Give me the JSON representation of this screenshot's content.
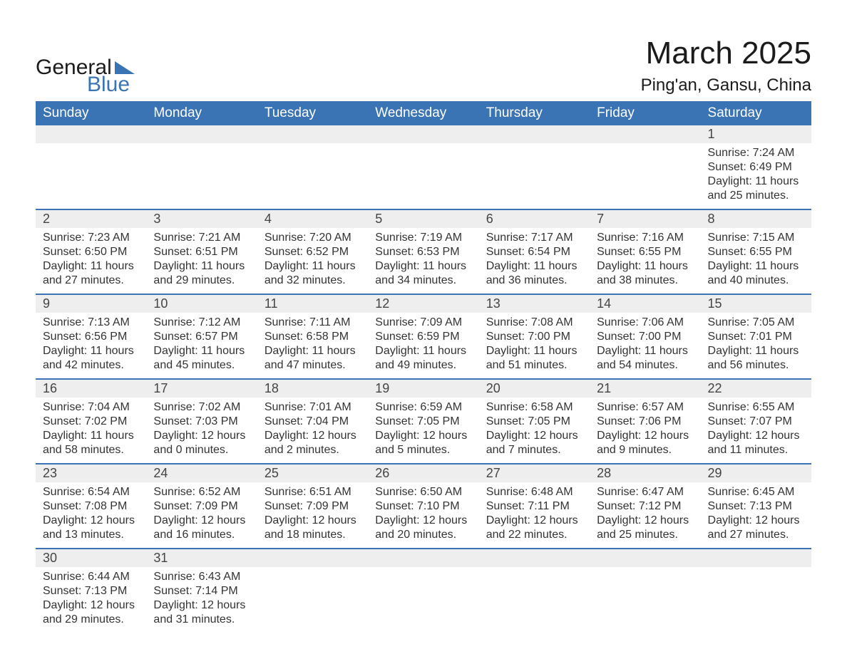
{
  "logo": {
    "word1": "General",
    "word2": "Blue"
  },
  "title": "March 2025",
  "location": "Ping'an, Gansu, China",
  "colors": {
    "header_bg": "#3b74b5",
    "header_text": "#ffffff",
    "daynum_bg": "#eeeeee",
    "row_border": "#3b74b5",
    "body_text": "#333333",
    "page_bg": "#ffffff"
  },
  "typography": {
    "title_fontsize": 44,
    "location_fontsize": 24,
    "day_header_fontsize": 19,
    "cell_fontsize": 16
  },
  "day_headers": [
    "Sunday",
    "Monday",
    "Tuesday",
    "Wednesday",
    "Thursday",
    "Friday",
    "Saturday"
  ],
  "weeks": [
    [
      null,
      null,
      null,
      null,
      null,
      null,
      {
        "n": "1",
        "sunrise": "Sunrise: 7:24 AM",
        "sunset": "Sunset: 6:49 PM",
        "day1": "Daylight: 11 hours",
        "day2": "and 25 minutes."
      }
    ],
    [
      {
        "n": "2",
        "sunrise": "Sunrise: 7:23 AM",
        "sunset": "Sunset: 6:50 PM",
        "day1": "Daylight: 11 hours",
        "day2": "and 27 minutes."
      },
      {
        "n": "3",
        "sunrise": "Sunrise: 7:21 AM",
        "sunset": "Sunset: 6:51 PM",
        "day1": "Daylight: 11 hours",
        "day2": "and 29 minutes."
      },
      {
        "n": "4",
        "sunrise": "Sunrise: 7:20 AM",
        "sunset": "Sunset: 6:52 PM",
        "day1": "Daylight: 11 hours",
        "day2": "and 32 minutes."
      },
      {
        "n": "5",
        "sunrise": "Sunrise: 7:19 AM",
        "sunset": "Sunset: 6:53 PM",
        "day1": "Daylight: 11 hours",
        "day2": "and 34 minutes."
      },
      {
        "n": "6",
        "sunrise": "Sunrise: 7:17 AM",
        "sunset": "Sunset: 6:54 PM",
        "day1": "Daylight: 11 hours",
        "day2": "and 36 minutes."
      },
      {
        "n": "7",
        "sunrise": "Sunrise: 7:16 AM",
        "sunset": "Sunset: 6:55 PM",
        "day1": "Daylight: 11 hours",
        "day2": "and 38 minutes."
      },
      {
        "n": "8",
        "sunrise": "Sunrise: 7:15 AM",
        "sunset": "Sunset: 6:55 PM",
        "day1": "Daylight: 11 hours",
        "day2": "and 40 minutes."
      }
    ],
    [
      {
        "n": "9",
        "sunrise": "Sunrise: 7:13 AM",
        "sunset": "Sunset: 6:56 PM",
        "day1": "Daylight: 11 hours",
        "day2": "and 42 minutes."
      },
      {
        "n": "10",
        "sunrise": "Sunrise: 7:12 AM",
        "sunset": "Sunset: 6:57 PM",
        "day1": "Daylight: 11 hours",
        "day2": "and 45 minutes."
      },
      {
        "n": "11",
        "sunrise": "Sunrise: 7:11 AM",
        "sunset": "Sunset: 6:58 PM",
        "day1": "Daylight: 11 hours",
        "day2": "and 47 minutes."
      },
      {
        "n": "12",
        "sunrise": "Sunrise: 7:09 AM",
        "sunset": "Sunset: 6:59 PM",
        "day1": "Daylight: 11 hours",
        "day2": "and 49 minutes."
      },
      {
        "n": "13",
        "sunrise": "Sunrise: 7:08 AM",
        "sunset": "Sunset: 7:00 PM",
        "day1": "Daylight: 11 hours",
        "day2": "and 51 minutes."
      },
      {
        "n": "14",
        "sunrise": "Sunrise: 7:06 AM",
        "sunset": "Sunset: 7:00 PM",
        "day1": "Daylight: 11 hours",
        "day2": "and 54 minutes."
      },
      {
        "n": "15",
        "sunrise": "Sunrise: 7:05 AM",
        "sunset": "Sunset: 7:01 PM",
        "day1": "Daylight: 11 hours",
        "day2": "and 56 minutes."
      }
    ],
    [
      {
        "n": "16",
        "sunrise": "Sunrise: 7:04 AM",
        "sunset": "Sunset: 7:02 PM",
        "day1": "Daylight: 11 hours",
        "day2": "and 58 minutes."
      },
      {
        "n": "17",
        "sunrise": "Sunrise: 7:02 AM",
        "sunset": "Sunset: 7:03 PM",
        "day1": "Daylight: 12 hours",
        "day2": "and 0 minutes."
      },
      {
        "n": "18",
        "sunrise": "Sunrise: 7:01 AM",
        "sunset": "Sunset: 7:04 PM",
        "day1": "Daylight: 12 hours",
        "day2": "and 2 minutes."
      },
      {
        "n": "19",
        "sunrise": "Sunrise: 6:59 AM",
        "sunset": "Sunset: 7:05 PM",
        "day1": "Daylight: 12 hours",
        "day2": "and 5 minutes."
      },
      {
        "n": "20",
        "sunrise": "Sunrise: 6:58 AM",
        "sunset": "Sunset: 7:05 PM",
        "day1": "Daylight: 12 hours",
        "day2": "and 7 minutes."
      },
      {
        "n": "21",
        "sunrise": "Sunrise: 6:57 AM",
        "sunset": "Sunset: 7:06 PM",
        "day1": "Daylight: 12 hours",
        "day2": "and 9 minutes."
      },
      {
        "n": "22",
        "sunrise": "Sunrise: 6:55 AM",
        "sunset": "Sunset: 7:07 PM",
        "day1": "Daylight: 12 hours",
        "day2": "and 11 minutes."
      }
    ],
    [
      {
        "n": "23",
        "sunrise": "Sunrise: 6:54 AM",
        "sunset": "Sunset: 7:08 PM",
        "day1": "Daylight: 12 hours",
        "day2": "and 13 minutes."
      },
      {
        "n": "24",
        "sunrise": "Sunrise: 6:52 AM",
        "sunset": "Sunset: 7:09 PM",
        "day1": "Daylight: 12 hours",
        "day2": "and 16 minutes."
      },
      {
        "n": "25",
        "sunrise": "Sunrise: 6:51 AM",
        "sunset": "Sunset: 7:09 PM",
        "day1": "Daylight: 12 hours",
        "day2": "and 18 minutes."
      },
      {
        "n": "26",
        "sunrise": "Sunrise: 6:50 AM",
        "sunset": "Sunset: 7:10 PM",
        "day1": "Daylight: 12 hours",
        "day2": "and 20 minutes."
      },
      {
        "n": "27",
        "sunrise": "Sunrise: 6:48 AM",
        "sunset": "Sunset: 7:11 PM",
        "day1": "Daylight: 12 hours",
        "day2": "and 22 minutes."
      },
      {
        "n": "28",
        "sunrise": "Sunrise: 6:47 AM",
        "sunset": "Sunset: 7:12 PM",
        "day1": "Daylight: 12 hours",
        "day2": "and 25 minutes."
      },
      {
        "n": "29",
        "sunrise": "Sunrise: 6:45 AM",
        "sunset": "Sunset: 7:13 PM",
        "day1": "Daylight: 12 hours",
        "day2": "and 27 minutes."
      }
    ],
    [
      {
        "n": "30",
        "sunrise": "Sunrise: 6:44 AM",
        "sunset": "Sunset: 7:13 PM",
        "day1": "Daylight: 12 hours",
        "day2": "and 29 minutes."
      },
      {
        "n": "31",
        "sunrise": "Sunrise: 6:43 AM",
        "sunset": "Sunset: 7:14 PM",
        "day1": "Daylight: 12 hours",
        "day2": "and 31 minutes."
      },
      null,
      null,
      null,
      null,
      null
    ]
  ]
}
